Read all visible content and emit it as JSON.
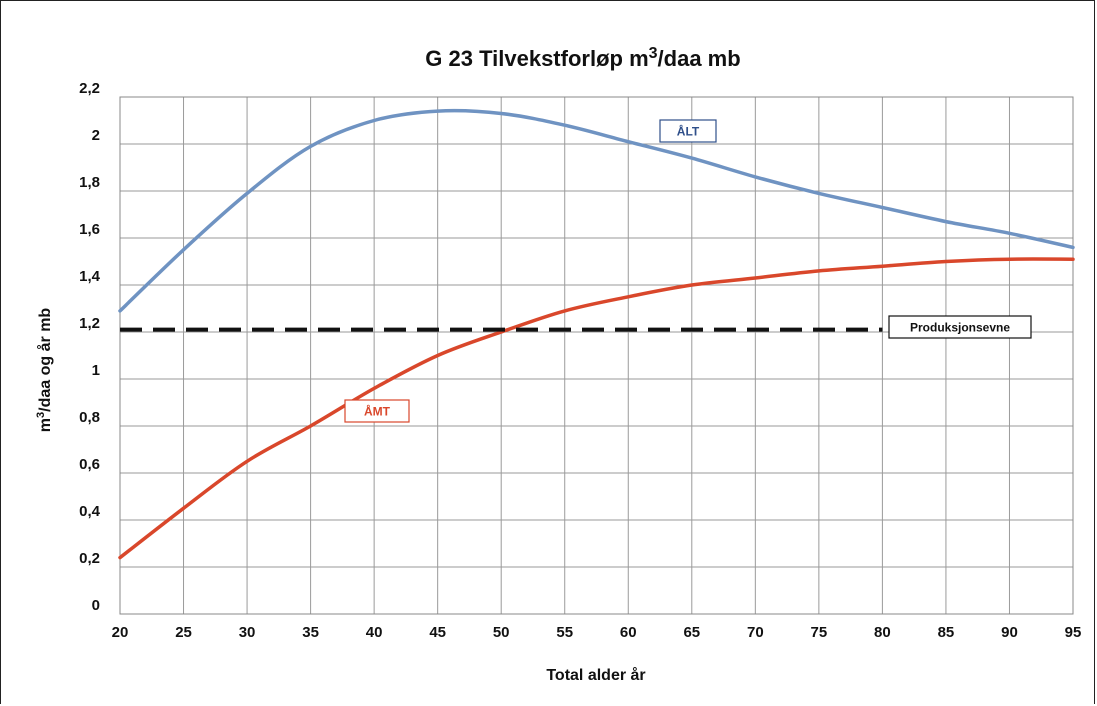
{
  "chart_data": {
    "type": "line",
    "title": "G 23 Tilvekstforløp m3/daa mb",
    "title_parts": {
      "pre": "G 23 Tilvekstforløp m",
      "sup": "3",
      "post": "/daa mb"
    },
    "xlabel": "Total alder år",
    "ylabel": "m3/daa og år mb",
    "ylabel_parts": {
      "pre": "m",
      "sup": "3",
      "post": "/daa og år mb"
    },
    "xlim": [
      20,
      95
    ],
    "ylim": [
      0,
      2.2
    ],
    "x_ticks": [
      20,
      25,
      30,
      35,
      40,
      45,
      50,
      55,
      60,
      65,
      70,
      75,
      80,
      85,
      90,
      95
    ],
    "x_tick_labels": [
      "20",
      "25",
      "30",
      "35",
      "40",
      "45",
      "50",
      "55",
      "60",
      "65",
      "70",
      "75",
      "80",
      "85",
      "90",
      "95"
    ],
    "y_ticks": [
      0,
      0.2,
      0.4,
      0.6,
      0.8,
      1.0,
      1.2,
      1.4,
      1.6,
      1.8,
      2.0,
      2.2
    ],
    "y_tick_labels": [
      "0",
      "0,2",
      "0,4",
      "0,6",
      "0,8",
      "1",
      "1,2",
      "1,4",
      "1,6",
      "1,8",
      "2",
      "2,2"
    ],
    "grid": true,
    "series": [
      {
        "name": "ÅLT",
        "color": "#6f93c2",
        "label_color": "#2f4f8a",
        "style": "solid",
        "x": [
          20,
          25,
          30,
          35,
          40,
          45,
          50,
          55,
          60,
          65,
          70,
          75,
          80,
          85,
          90,
          95
        ],
        "y": [
          1.29,
          1.55,
          1.79,
          1.99,
          2.1,
          2.14,
          2.13,
          2.08,
          2.01,
          1.94,
          1.86,
          1.79,
          1.73,
          1.67,
          1.62,
          1.56
        ]
      },
      {
        "name": "ÅMT",
        "color": "#d9472b",
        "label_color": "#d9472b",
        "style": "solid",
        "x": [
          20,
          25,
          30,
          35,
          40,
          45,
          50,
          55,
          60,
          65,
          70,
          75,
          80,
          85,
          90,
          95
        ],
        "y": [
          0.24,
          0.45,
          0.65,
          0.8,
          0.96,
          1.1,
          1.2,
          1.29,
          1.35,
          1.4,
          1.43,
          1.46,
          1.48,
          1.5,
          1.51,
          1.51
        ]
      },
      {
        "name": "Produksjonsevne",
        "color": "#111111",
        "label_color": "#111111",
        "style": "dashed",
        "x": [
          20,
          80
        ],
        "y": [
          1.21,
          1.21
        ]
      }
    ]
  }
}
